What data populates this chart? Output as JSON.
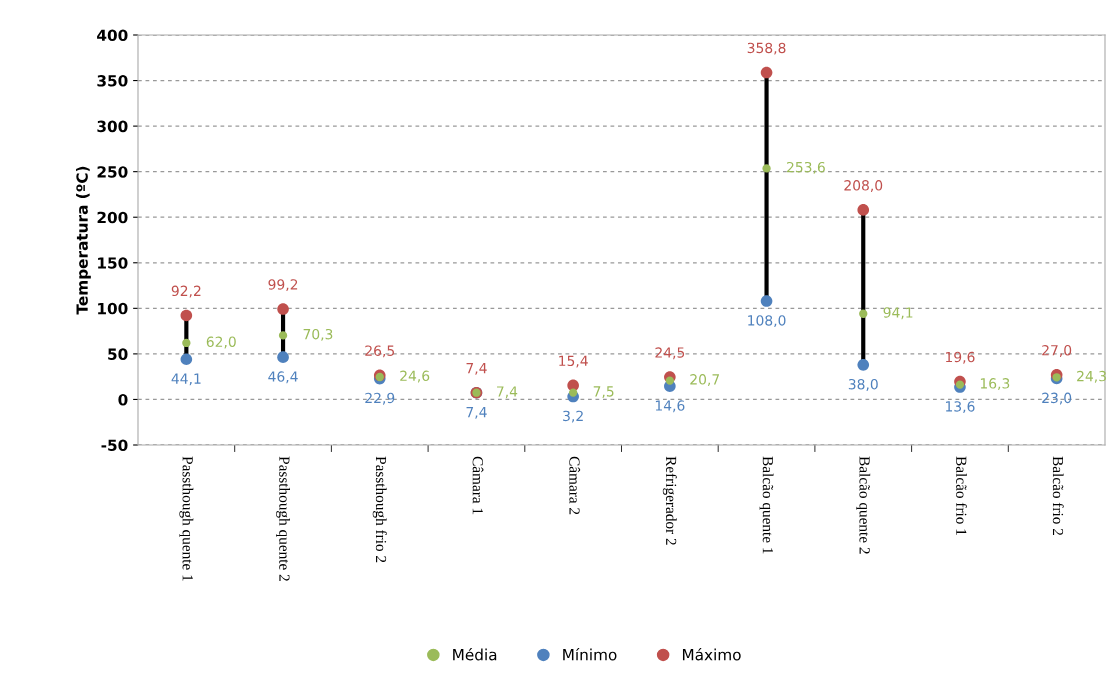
{
  "chart_data": {
    "type": "scatter",
    "ylabel": "Temperatura (ºC)",
    "categories": [
      "Passthough quente 1",
      "Passthough quente 2",
      "Passthough frio 2",
      "Câmara 1",
      "Câmara 2",
      "Refrigerador 2",
      "Balcão quente 1",
      "Balcão quente 2",
      "Balcão frio 1",
      "Balcão frio 2"
    ],
    "series": [
      {
        "name": "Média",
        "color": "#9bbb59",
        "values": [
          62.0,
          70.3,
          24.6,
          7.4,
          7.5,
          20.7,
          253.6,
          94.1,
          16.3,
          24.3
        ],
        "value_labels": [
          "62,0",
          "70,3",
          "24,6",
          "7,4",
          "7,5",
          "20,7",
          "253,6",
          "94,1",
          "16,3",
          "24,3"
        ]
      },
      {
        "name": "Mínimo",
        "color": "#4f81bd",
        "values": [
          44.1,
          46.4,
          22.9,
          7.4,
          3.2,
          14.6,
          108.0,
          38.0,
          13.6,
          23.0
        ],
        "value_labels": [
          "44,1",
          "46,4",
          "22,9",
          "7,4",
          "3,2",
          "14,6",
          "108,0",
          "38,0",
          "13,6",
          "23,0"
        ]
      },
      {
        "name": "Máximo",
        "color": "#c0504d",
        "values": [
          92.2,
          99.2,
          26.5,
          7.4,
          15.4,
          24.5,
          358.8,
          208.0,
          19.6,
          27.0
        ],
        "value_labels": [
          "92,2",
          "99,2",
          "26,5",
          "7,4",
          "15,4",
          "24,5",
          "358,8",
          "208,0",
          "19,6",
          "27,0"
        ]
      }
    ],
    "ylim": [
      -50,
      400
    ],
    "yticks": [
      -50,
      0,
      50,
      100,
      150,
      200,
      250,
      300,
      350,
      400
    ],
    "grid": "y",
    "legend": "bottom",
    "marker": "circle"
  }
}
